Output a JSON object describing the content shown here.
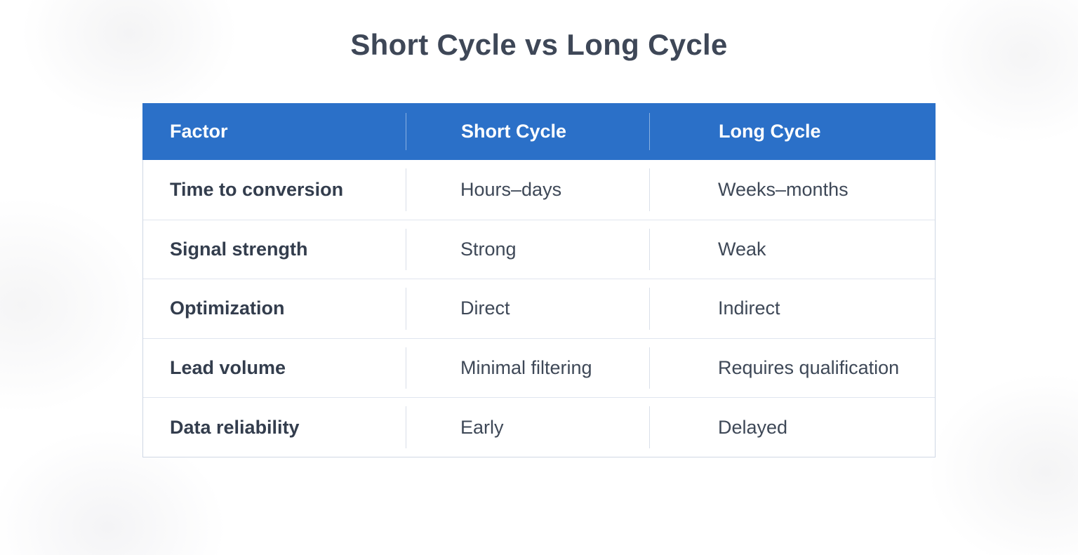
{
  "page": {
    "title": "Short Cycle vs Long Cycle"
  },
  "colors": {
    "header_bg": "#2b70c8",
    "header_text": "#ffffff",
    "title_text": "#3e4757",
    "row_label_text": "#333d4d",
    "cell_text": "#3e4857",
    "outer_border": "#cfd7e4",
    "row_divider": "#e0e5ef",
    "col_divider": "#d9dfe9"
  },
  "table": {
    "headers": [
      "Factor",
      "Short Cycle",
      "Long Cycle"
    ],
    "rows": [
      [
        "Time to conversion",
        "Hours–days",
        "Weeks–months"
      ],
      [
        "Signal strength",
        "Strong",
        "Weak"
      ],
      [
        "Optimization",
        "Direct",
        "Indirect"
      ],
      [
        "Lead volume",
        "Minimal filtering",
        "Requires qualification"
      ],
      [
        "Data reliability",
        "Early",
        "Delayed"
      ]
    ]
  },
  "chart_data": {
    "type": "table",
    "title": "Short Cycle vs Long Cycle",
    "columns": [
      "Factor",
      "Short Cycle",
      "Long Cycle"
    ],
    "rows": [
      {
        "factor": "Time to conversion",
        "short_cycle": "Hours–days",
        "long_cycle": "Weeks–months"
      },
      {
        "factor": "Signal strength",
        "short_cycle": "Strong",
        "long_cycle": "Weak"
      },
      {
        "factor": "Optimization",
        "short_cycle": "Direct",
        "long_cycle": "Indirect"
      },
      {
        "factor": "Lead volume",
        "short_cycle": "Minimal filtering",
        "long_cycle": "Requires qualification"
      },
      {
        "factor": "Data reliability",
        "short_cycle": "Early",
        "long_cycle": "Delayed"
      }
    ],
    "layout": {
      "header_fill": "#2b70c8",
      "header_text_color": "#ffffff",
      "body_fill": "#ffffff",
      "grid": "horizontal-and-vertical-light"
    }
  }
}
